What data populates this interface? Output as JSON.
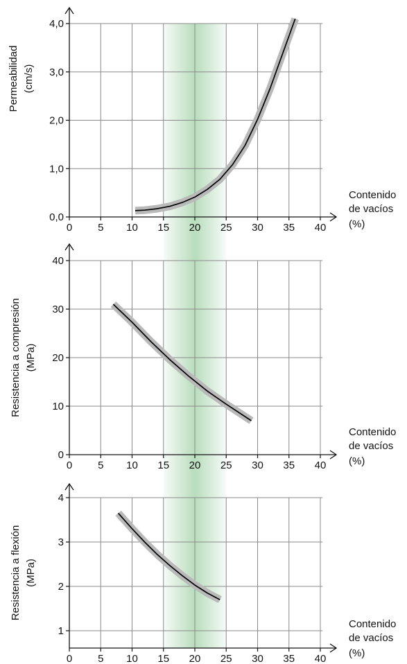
{
  "chart_data": [
    {
      "type": "line",
      "ylabel_lines": [
        "Permeabilidad",
        "(cm/s)"
      ],
      "xlabel_lines": [
        "Contenido",
        "de vacíos",
        "(%)"
      ],
      "x_ticks": [
        "0",
        "5",
        "10",
        "15",
        "20",
        "25",
        "30",
        "35",
        "40"
      ],
      "y_ticks": [
        "0,0",
        "1,0",
        "2,0",
        "3,0",
        "4,0"
      ],
      "xlim": [
        0,
        40
      ],
      "ylim": [
        0,
        4
      ],
      "highlight_x_range": [
        15,
        25
      ],
      "grid": true,
      "series": [
        {
          "x": [
            10.5,
            12,
            14,
            16,
            18,
            20,
            22,
            24,
            26,
            28,
            30,
            32,
            34,
            36
          ],
          "y": [
            0.13,
            0.14,
            0.17,
            0.22,
            0.3,
            0.41,
            0.57,
            0.78,
            1.08,
            1.48,
            2.02,
            2.66,
            3.38,
            4.1
          ]
        }
      ]
    },
    {
      "type": "line",
      "ylabel_lines": [
        "Resistencia a compresión",
        "(MPa)"
      ],
      "xlabel_lines": [
        "Contenido",
        "de vacíos",
        "(%)"
      ],
      "x_ticks": [
        "0",
        "5",
        "10",
        "15",
        "20",
        "25",
        "30",
        "35",
        "40"
      ],
      "y_ticks": [
        "0",
        "10",
        "20",
        "30",
        "40"
      ],
      "xlim": [
        0,
        40
      ],
      "ylim": [
        0,
        40
      ],
      "highlight_x_range": [
        15,
        25
      ],
      "grid": true,
      "series": [
        {
          "x": [
            7,
            10,
            13,
            16,
            19,
            22,
            25,
            29
          ],
          "y": [
            31,
            27.3,
            23.3,
            19.6,
            16.2,
            13.1,
            10.4,
            7
          ]
        }
      ]
    },
    {
      "type": "line",
      "ylabel_lines": [
        "Resistencia a flexión",
        "(MPa)"
      ],
      "xlabel_lines": [
        "Contenido",
        "de vacíos",
        "(%)"
      ],
      "x_ticks": [
        "0",
        "5",
        "10",
        "15",
        "20",
        "25",
        "30",
        "35",
        "40"
      ],
      "y_ticks": [
        "1",
        "2",
        "3",
        "4"
      ],
      "xlim": [
        0,
        40
      ],
      "ylim": [
        0.8,
        4.2
      ],
      "highlight_x_range": [
        15,
        25
      ],
      "grid": true,
      "series": [
        {
          "x": [
            7.8,
            10,
            12,
            14,
            16,
            18,
            20,
            22,
            24
          ],
          "y": [
            3.65,
            3.3,
            3.0,
            2.72,
            2.47,
            2.24,
            2.03,
            1.85,
            1.7
          ]
        }
      ]
    }
  ],
  "colors": {
    "highlight": "#2e9a3c",
    "band": "#b9b9b9",
    "line": "#000000",
    "grid": "#8a8a8a"
  }
}
